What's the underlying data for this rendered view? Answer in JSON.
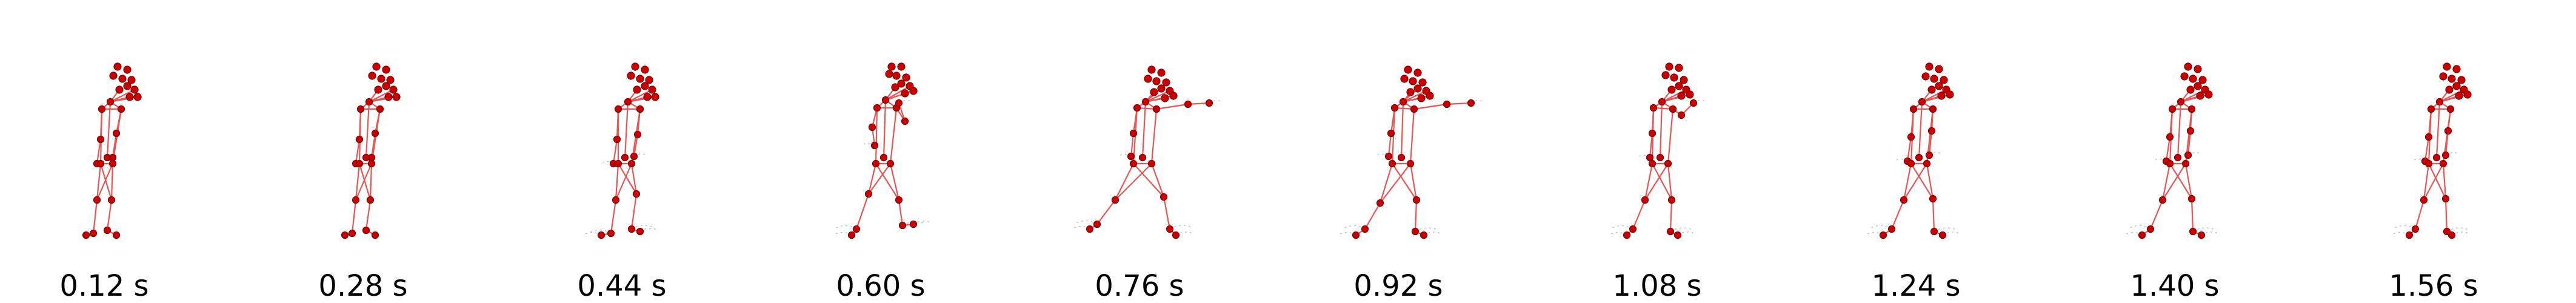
{
  "figure": {
    "colors": {
      "joint": "#cc0000",
      "bone": "#e85555",
      "trace": "#9aa6b2",
      "label": "#000000"
    },
    "frames": [
      {
        "time_label": "0.12 s",
        "pose": "stand",
        "trace": false
      },
      {
        "time_label": "0.28 s",
        "pose": "stand",
        "trace": false
      },
      {
        "time_label": "0.44 s",
        "pose": "stand_wide",
        "trace": true
      },
      {
        "time_label": "0.60 s",
        "pose": "crouch_arm",
        "trace": true
      },
      {
        "time_label": "0.76 s",
        "pose": "lunge_punch",
        "trace": true
      },
      {
        "time_label": "0.92 s",
        "pose": "lunge_punch_low",
        "trace": true
      },
      {
        "time_label": "1.08 s",
        "pose": "recover",
        "trace": true
      },
      {
        "time_label": "1.24 s",
        "pose": "recover_wide",
        "trace": true
      },
      {
        "time_label": "1.40 s",
        "pose": "recover_wide",
        "trace": true
      },
      {
        "time_label": "1.56 s",
        "pose": "stand_back",
        "trace": true
      }
    ]
  }
}
